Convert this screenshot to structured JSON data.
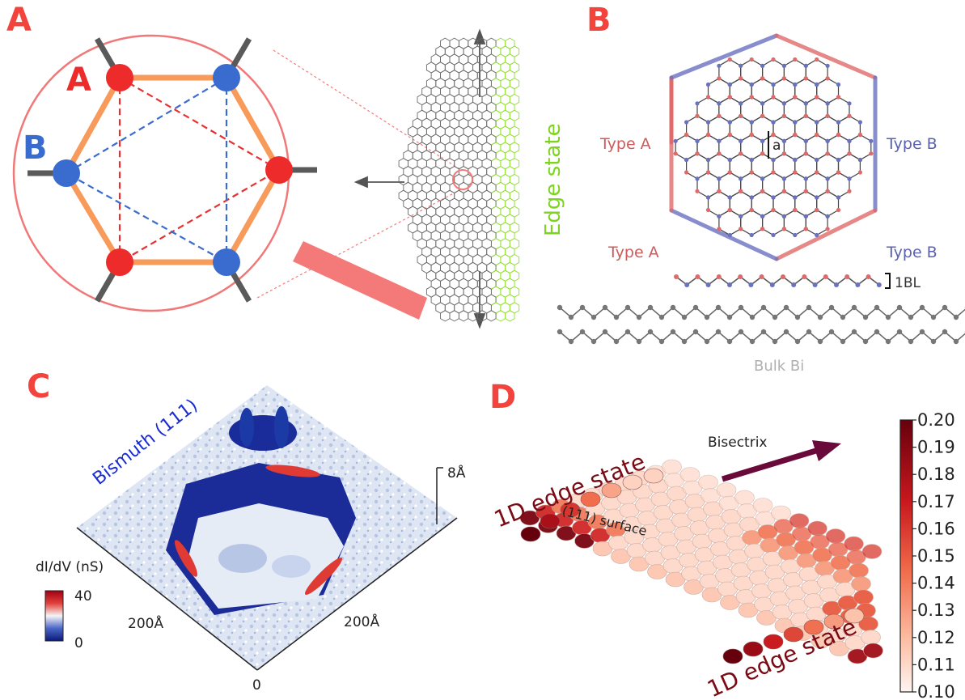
{
  "panels": {
    "a": {
      "letter": "A",
      "sublattice_a": "A",
      "sublattice_b": "B",
      "edge_label": "Edge state",
      "colors": {
        "a_site": "#ee2b2b",
        "b_site": "#3a6ccf",
        "hexagon": "#f79a5a",
        "edge": "#8fe02a",
        "magnifier": "#f47a7a"
      }
    },
    "b": {
      "letter": "B",
      "type_a_top": "Type A",
      "type_b_top": "Type B",
      "type_a_bottom": "Type A",
      "type_b_bottom": "Type B",
      "lattice_constant": "a",
      "bilayer": "1BL",
      "bulk": "Bulk Bi",
      "colors": {
        "type_a": "#e06a6a",
        "type_b": "#6a72c0"
      }
    },
    "c": {
      "letter": "C",
      "material": "Bismuth (111)",
      "height_scale": "8Å",
      "axis_left": "200Å",
      "axis_right": "200Å",
      "axis_origin": "0",
      "colorbar_title": "dI/dV (nS)",
      "colorbar_max": "40",
      "colorbar_min": "0"
    },
    "d": {
      "letter": "D",
      "edge_top": "1D edge state",
      "edge_bottom": "1D edge state",
      "surface": "(111) surface",
      "bisectrix": "Bisectrix",
      "colorbar_ticks": [
        "0.20",
        "0.19",
        "0.18",
        "0.17",
        "0.16",
        "0.15",
        "0.14",
        "0.13",
        "0.12",
        "0.11",
        "0.10"
      ],
      "colors": {
        "max": "#6b0010",
        "min": "#fdf0ea",
        "arrow": "#6a0a3a",
        "label": "#7a0a14"
      }
    }
  }
}
